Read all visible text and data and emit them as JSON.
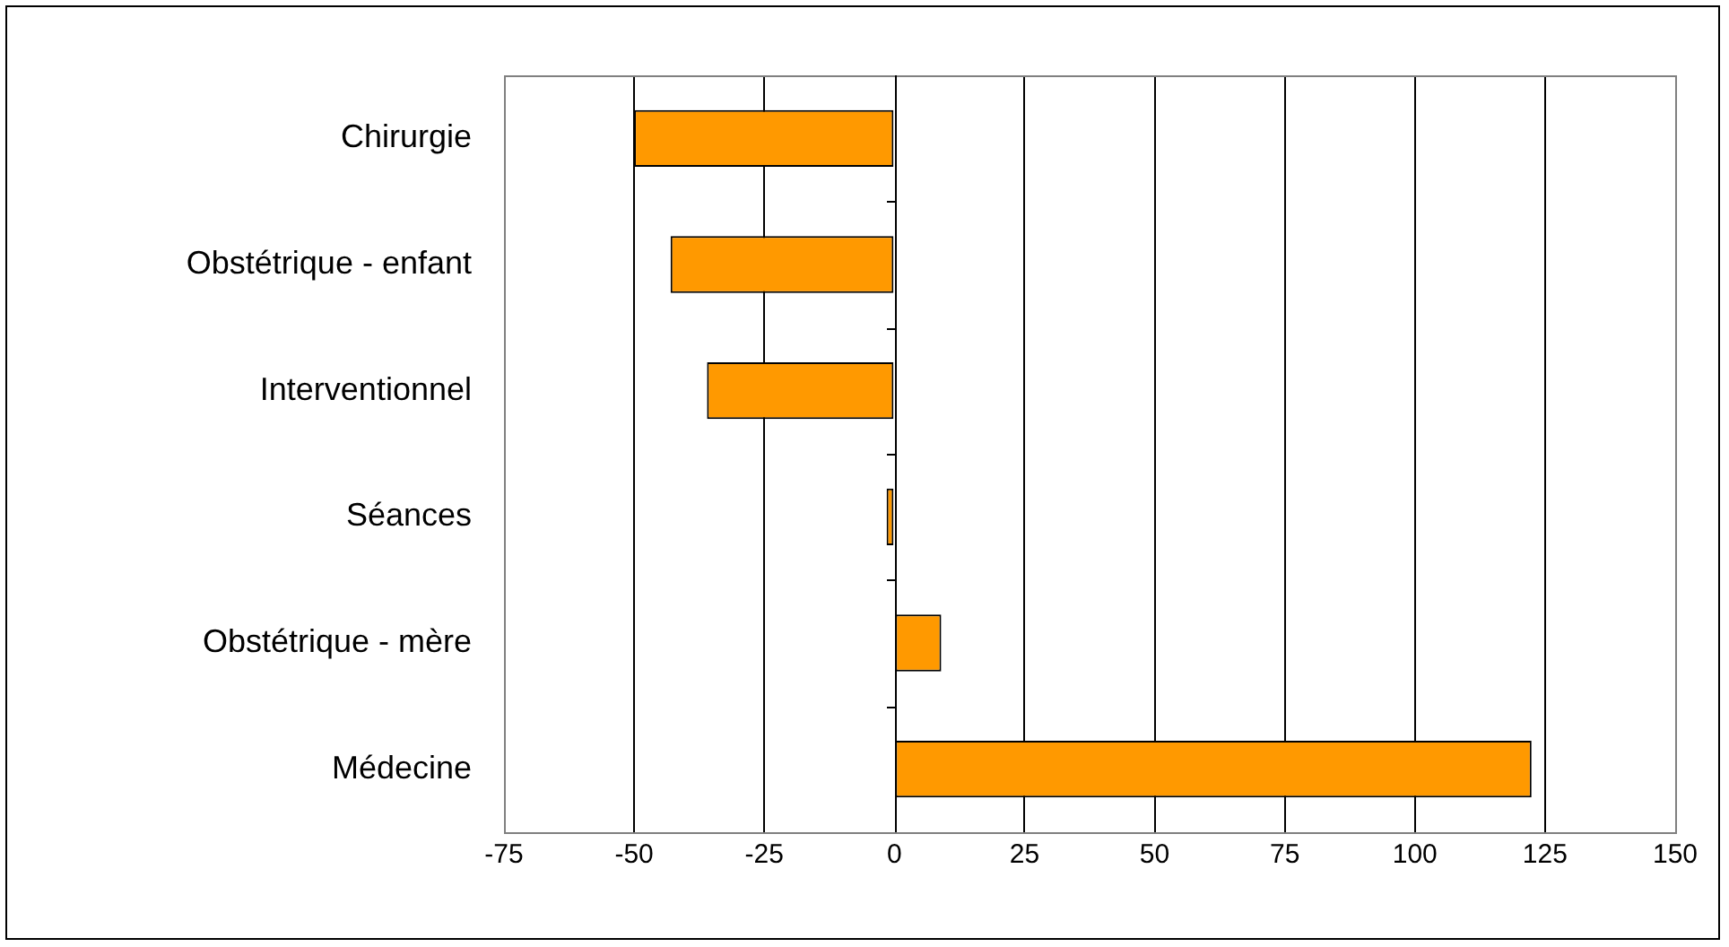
{
  "chart_data": {
    "type": "bar",
    "orientation": "horizontal",
    "categories": [
      "Chirurgie",
      "Obstétrique - enfant",
      "Interventionnel",
      "Séances",
      "Obstétrique - mère",
      "Médecine"
    ],
    "values": [
      -50,
      -43,
      -36,
      -1.5,
      9,
      122.4
    ],
    "color": "#ff9900",
    "xlim": [
      -75,
      150
    ],
    "xticks": [
      -75,
      -50,
      -25,
      0,
      25,
      50,
      75,
      100,
      125,
      150
    ],
    "grid": "x",
    "legend": false
  }
}
